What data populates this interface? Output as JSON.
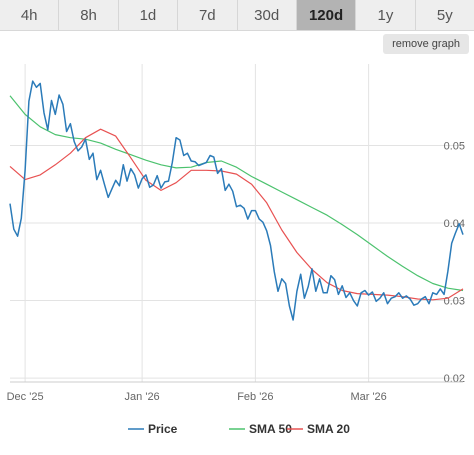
{
  "tabs": [
    {
      "label": "4h",
      "active": false
    },
    {
      "label": "8h",
      "active": false
    },
    {
      "label": "1d",
      "active": false
    },
    {
      "label": "7d",
      "active": false
    },
    {
      "label": "30d",
      "active": false
    },
    {
      "label": "120d",
      "active": true
    },
    {
      "label": "1y",
      "active": false
    },
    {
      "label": "5y",
      "active": false
    }
  ],
  "remove_graph_label": "remove graph",
  "chart_data": {
    "type": "line",
    "x_ticks": [
      "Dec '25",
      "Jan '26",
      "Feb '26",
      "Mar '26"
    ],
    "x_tick_positions": [
      4,
      35,
      65,
      95
    ],
    "x_range": [
      0,
      120
    ],
    "y_ticks": [
      0.02,
      0.03,
      0.04,
      0.05
    ],
    "y_tick_labels": [
      "0.02",
      "0.03",
      "0.04",
      "0.05"
    ],
    "y_range": [
      0.0195,
      0.0605
    ],
    "grid": true,
    "legend": "bottom",
    "series": [
      {
        "name": "Price",
        "color": "#2b7bb9",
        "x": [
          0,
          1,
          2,
          3,
          4,
          5,
          6,
          7,
          8,
          9,
          10,
          11,
          12,
          13,
          14,
          15,
          16,
          17,
          18,
          19,
          20,
          21,
          22,
          23,
          24,
          25,
          26,
          27,
          28,
          29,
          30,
          31,
          32,
          33,
          34,
          35,
          36,
          37,
          38,
          39,
          40,
          41,
          42,
          43,
          44,
          45,
          46,
          47,
          48,
          49,
          50,
          51,
          52,
          53,
          54,
          55,
          56,
          57,
          58,
          59,
          60,
          61,
          62,
          63,
          64,
          65,
          66,
          67,
          68,
          69,
          70,
          71,
          72,
          73,
          74,
          75,
          76,
          77,
          78,
          79,
          80,
          81,
          82,
          83,
          84,
          85,
          86,
          87,
          88,
          89,
          90,
          91,
          92,
          93,
          94,
          95,
          96,
          97,
          98,
          99,
          100,
          101,
          102,
          103,
          104,
          105,
          106,
          107,
          108,
          109,
          110,
          111,
          112,
          113,
          114,
          115,
          116,
          117,
          118,
          119,
          120
        ],
        "values": [
          0.0425,
          0.0392,
          0.0383,
          0.0406,
          0.0468,
          0.0557,
          0.0583,
          0.0575,
          0.058,
          0.0542,
          0.052,
          0.0558,
          0.054,
          0.0565,
          0.0553,
          0.0518,
          0.0528,
          0.0505,
          0.0493,
          0.0498,
          0.0508,
          0.0482,
          0.049,
          0.0456,
          0.0468,
          0.045,
          0.0433,
          0.0444,
          0.0455,
          0.0448,
          0.0475,
          0.0454,
          0.047,
          0.0462,
          0.0445,
          0.0457,
          0.0462,
          0.0446,
          0.0449,
          0.0461,
          0.0445,
          0.0453,
          0.0454,
          0.0478,
          0.051,
          0.0507,
          0.0487,
          0.049,
          0.048,
          0.0479,
          0.0474,
          0.0476,
          0.0478,
          0.0487,
          0.0485,
          0.0464,
          0.047,
          0.0442,
          0.045,
          0.0441,
          0.0421,
          0.0423,
          0.0419,
          0.0405,
          0.0416,
          0.0416,
          0.0405,
          0.0401,
          0.039,
          0.0371,
          0.0337,
          0.0312,
          0.0328,
          0.0322,
          0.0293,
          0.0275,
          0.0312,
          0.0334,
          0.0303,
          0.0318,
          0.0341,
          0.0312,
          0.0328,
          0.031,
          0.031,
          0.0332,
          0.0327,
          0.0308,
          0.0319,
          0.0304,
          0.031,
          0.03,
          0.0293,
          0.031,
          0.0313,
          0.0307,
          0.0311,
          0.0299,
          0.0303,
          0.031,
          0.0296,
          0.0303,
          0.0305,
          0.031,
          0.0303,
          0.0306,
          0.0302,
          0.0294,
          0.0296,
          0.0302,
          0.0305,
          0.0296,
          0.031,
          0.0308,
          0.0315,
          0.0308,
          0.0338,
          0.0374,
          0.0387,
          0.0399,
          0.0385
        ]
      },
      {
        "name": "SMA 50",
        "color": "#4cc26e",
        "x": [
          0,
          4,
          8,
          12,
          16,
          20,
          24,
          28,
          32,
          36,
          40,
          44,
          48,
          52,
          56,
          60,
          64,
          68,
          72,
          76,
          80,
          84,
          88,
          92,
          96,
          100,
          104,
          108,
          112,
          116,
          120
        ],
        "values": [
          0.0564,
          0.054,
          0.0524,
          0.0514,
          0.051,
          0.0508,
          0.0503,
          0.0495,
          0.0488,
          0.0481,
          0.0475,
          0.0471,
          0.0472,
          0.0478,
          0.048,
          0.0472,
          0.046,
          0.045,
          0.044,
          0.043,
          0.042,
          0.041,
          0.0398,
          0.0385,
          0.0371,
          0.0357,
          0.0344,
          0.0332,
          0.0322,
          0.0316,
          0.0313
        ]
      },
      {
        "name": "SMA 20",
        "color": "#e85252",
        "x": [
          0,
          4,
          8,
          12,
          16,
          20,
          24,
          28,
          32,
          36,
          40,
          44,
          48,
          52,
          56,
          60,
          64,
          68,
          72,
          76,
          80,
          84,
          88,
          92,
          96,
          100,
          104,
          108,
          112,
          116,
          120
        ],
        "values": [
          0.0473,
          0.0456,
          0.0462,
          0.0475,
          0.049,
          0.051,
          0.0521,
          0.0512,
          0.0484,
          0.0455,
          0.0442,
          0.0452,
          0.0468,
          0.0468,
          0.0467,
          0.0463,
          0.045,
          0.0426,
          0.0391,
          0.0362,
          0.034,
          0.0323,
          0.0313,
          0.0309,
          0.0308,
          0.0307,
          0.0305,
          0.0302,
          0.0301,
          0.0303,
          0.0315
        ]
      }
    ]
  }
}
